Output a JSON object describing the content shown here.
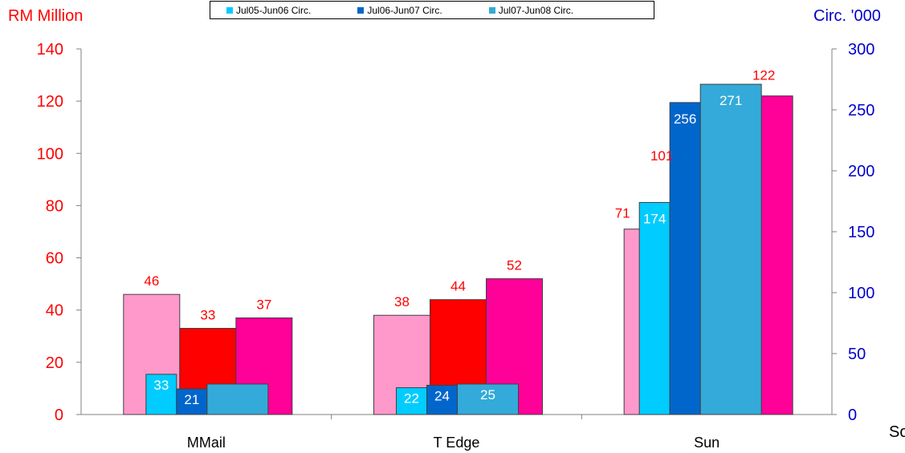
{
  "left_axis_title": "RM Million",
  "right_axis_title": "Circ. '000",
  "side_note": "So",
  "chart_data": {
    "type": "bar",
    "categories": [
      "MMail",
      "T Edge",
      "Sun"
    ],
    "left_axis": {
      "ylim": [
        0,
        140
      ],
      "ticks": [
        "0",
        "20",
        "40",
        "60",
        "80",
        "100",
        "120",
        "140"
      ],
      "color": "#ff0000"
    },
    "right_axis": {
      "ylim": [
        0,
        300
      ],
      "ticks": [
        "0",
        "50",
        "100",
        "150",
        "200",
        "250",
        "300"
      ],
      "color": "#0000cc"
    },
    "revenue_series": [
      {
        "values": [
          46,
          38,
          71
        ],
        "labels": [
          "46",
          "38",
          "71"
        ],
        "color": "#ff99cc"
      },
      {
        "values": [
          33,
          44,
          101
        ],
        "labels": [
          "33",
          "44",
          "101"
        ],
        "color": "#ff0000"
      },
      {
        "values": [
          37,
          52,
          122
        ],
        "labels": [
          "37",
          "52",
          "122"
        ],
        "color": "#ff0099"
      }
    ],
    "circulation_series": [
      {
        "name": "Jul05-Jun06 Circ.",
        "values": [
          33,
          22,
          174
        ],
        "labels": [
          "33",
          "22",
          "174"
        ],
        "color": "#00ccff"
      },
      {
        "name": "Jul06-Jun07 Circ.",
        "values": [
          21,
          24,
          256
        ],
        "labels": [
          "21",
          "24",
          "256"
        ],
        "color": "#0066cc"
      },
      {
        "name": "Jul07-Jun08 Circ.",
        "values": [
          25,
          25,
          271
        ],
        "labels": [
          "",
          "25",
          "271"
        ],
        "color": "#33aad9"
      }
    ],
    "legend_position": "top"
  }
}
